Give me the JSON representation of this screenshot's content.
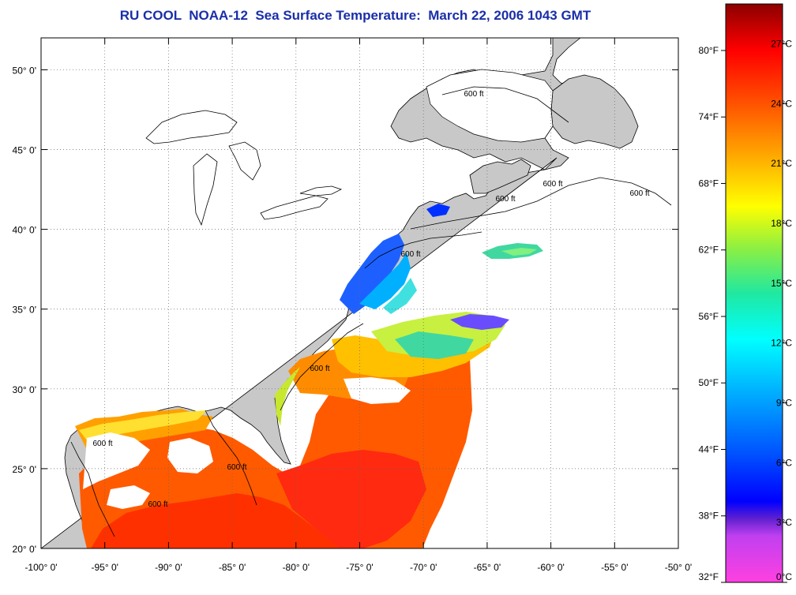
{
  "title": "RU COOL  NOAA-12  Sea Surface Temperature:  March 22, 2006 1043 GMT",
  "map": {
    "lon_range": [
      -100,
      -50
    ],
    "lat_range": [
      20,
      52
    ],
    "grid": true,
    "lon_ticks": [
      "-100° 0'",
      "-95° 0'",
      "-90° 0'",
      "-85° 0'",
      "-80° 0'",
      "-75° 0'",
      "-70° 0'",
      "-65° 0'",
      "-60° 0'",
      "-55° 0'",
      "-50° 0'"
    ],
    "lat_ticks": [
      "20° 0'",
      "25° 0'",
      "30° 0'",
      "35° 0'",
      "40° 0'",
      "45° 0'",
      "50° 0'"
    ],
    "contour_labels": [
      "600 ft",
      "600 ft",
      "600 ft",
      "600 ft",
      "600 ft",
      "600 ft",
      "600 ft",
      "600 ft",
      "600 ft"
    ],
    "land_color": "#c8c8c8",
    "no_data_color": "#ffffff"
  },
  "colorbar": {
    "fahrenheit_labels": [
      "32°F",
      "38°F",
      "44°F",
      "50°F",
      "56°F",
      "62°F",
      "68°F",
      "74°F",
      "80°F"
    ],
    "celsius_labels": [
      "0°C",
      "3°C",
      "6°C",
      "9°C",
      "12°C",
      "15°C",
      "18°C",
      "21°C",
      "24°C",
      "27°C"
    ],
    "range_c": [
      0,
      29
    ]
  }
}
